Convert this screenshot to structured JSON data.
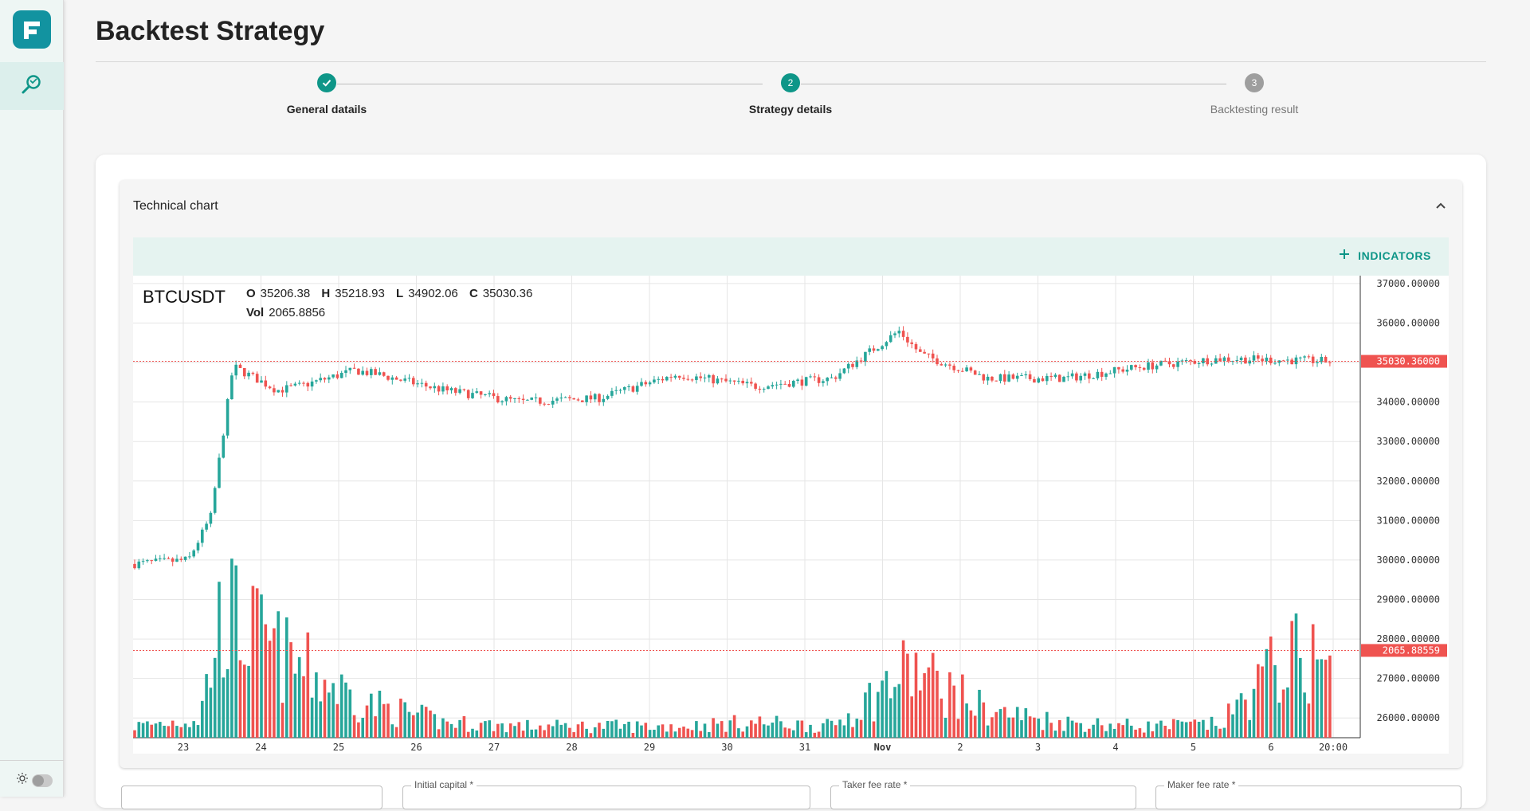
{
  "page": {
    "title": "Backtest Strategy"
  },
  "stepper": {
    "steps": [
      {
        "number": "1",
        "label": "General datails",
        "state": "completed"
      },
      {
        "number": "2",
        "label": "Strategy details",
        "state": "active"
      },
      {
        "number": "3",
        "label": "Backtesting result",
        "state": "pending"
      }
    ]
  },
  "panel": {
    "title": "Technical chart",
    "indicators_label": "INDICATORS"
  },
  "legend": {
    "symbol": "BTCUSDT",
    "open_label": "O",
    "open": "35206.38",
    "high_label": "H",
    "high": "35218.93",
    "low_label": "L",
    "low": "34902.06",
    "close_label": "C",
    "close": "35030.36",
    "vol_label": "Vol",
    "vol": "2065.8856"
  },
  "price_axis": {
    "ticks": [
      "37000.00000",
      "36000.00000",
      "35000.00000",
      "34000.00000",
      "33000.00000",
      "32000.00000",
      "31000.00000",
      "30000.00000",
      "29000.00000",
      "28000.00000",
      "27000.00000",
      "26000.00000"
    ],
    "last_price_label": "35030.36000",
    "last_volume_label": "2065.88559"
  },
  "time_axis": {
    "ticks": [
      "23",
      "24",
      "25",
      "26",
      "27",
      "28",
      "29",
      "30",
      "31",
      "Nov",
      "2",
      "3",
      "4",
      "5",
      "6",
      "20:00"
    ]
  },
  "colors": {
    "up": "#26a69a",
    "down": "#ef5350",
    "accent": "#0e9688",
    "price_line": "#ef5350"
  },
  "chart_data": {
    "type": "candlestick",
    "title": "",
    "series": [
      {
        "name": "BTCUSDT",
        "x": [
          "23",
          "24",
          "24",
          "24",
          "25",
          "25",
          "26",
          "26",
          "27",
          "28",
          "29",
          "30",
          "31",
          "Nov",
          "2",
          "2",
          "3",
          "4",
          "5",
          "6",
          "20:00"
        ],
        "close": [
          29900,
          30000,
          31100,
          34900,
          34300,
          34400,
          34800,
          34700,
          34300,
          34000,
          34100,
          34700,
          34400,
          34600,
          35800,
          35200,
          34600,
          34600,
          34900,
          35100,
          35030
        ]
      },
      {
        "name": "Vol",
        "x": [
          "23",
          "24",
          "24",
          "25",
          "26",
          "27",
          "28",
          "29",
          "30",
          "31",
          "Nov",
          "2",
          "3",
          "4",
          "5",
          "6",
          "20:00"
        ],
        "values": [
          300,
          500,
          3300,
          2000,
          900,
          400,
          300,
          300,
          300,
          400,
          300,
          1800,
          700,
          400,
          300,
          350,
          2066
        ]
      }
    ],
    "ylim": [
      25500,
      37200
    ],
    "volume_marker": 2065.88559,
    "last_price": 35030.36,
    "legend": "top-left"
  },
  "form": {
    "fields": [
      {
        "label": ""
      },
      {
        "label": "Initial capital *"
      },
      {
        "label": "Taker fee rate *"
      },
      {
        "label": "Maker fee rate *"
      }
    ]
  }
}
